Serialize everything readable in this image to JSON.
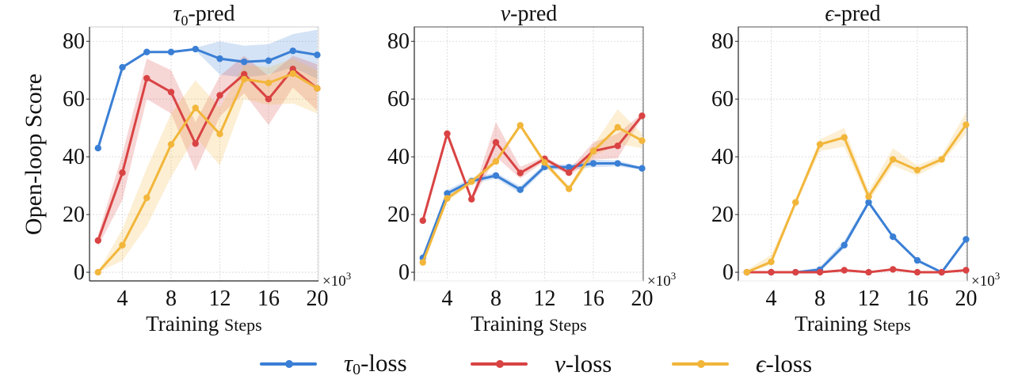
{
  "figure": {
    "ylabel": "Open-loop Score",
    "xlabel_main": "Training",
    "xlabel_small": "Steps",
    "x_multiplier": "×10",
    "x_multiplier_exp": "3"
  },
  "legend": [
    {
      "symbol": "τ",
      "sub": "0",
      "suffix": "-loss",
      "color": "#3a7fd5",
      "series": "tau0-loss"
    },
    {
      "symbol": "v",
      "sub": "",
      "suffix": "-loss",
      "color": "#d94343",
      "series": "v-loss"
    },
    {
      "symbol": "ϵ",
      "sub": "",
      "suffix": "-loss",
      "color": "#f2b63a",
      "series": "eps-loss"
    }
  ],
  "chart_data": [
    {
      "type": "line",
      "title": "τ0-pred",
      "title_symbol": "τ",
      "title_sub": "0",
      "title_suffix": "-pred",
      "xlabel": "Training Steps (×10^3)",
      "ylabel": "Open-loop Score",
      "x": [
        2,
        4,
        6,
        8,
        10,
        12,
        14,
        16,
        18,
        20
      ],
      "xticks": [
        4,
        8,
        12,
        16,
        20
      ],
      "yticks": [
        0,
        20,
        40,
        60,
        80
      ],
      "xlim": [
        1.3,
        20.1
      ],
      "ylim": [
        -3,
        85
      ],
      "grid": true,
      "legend_position": "bottom-center",
      "series": [
        {
          "name": "τ0-loss",
          "color": "#3a7fd5",
          "values": [
            43,
            71,
            76.3,
            76.3,
            77.3,
            74,
            72.9,
            73.3,
            76.7,
            75.3
          ],
          "lower": [
            43,
            71,
            76.3,
            76.3,
            76.8,
            68.5,
            67.5,
            68.5,
            71,
            67
          ],
          "upper": [
            43,
            71,
            76.3,
            76.3,
            77.8,
            80,
            78.5,
            79,
            82.5,
            84
          ]
        },
        {
          "name": "v-loss",
          "color": "#d94343",
          "values": [
            11,
            34.5,
            67.2,
            62.4,
            44.6,
            61.3,
            68.6,
            60,
            70.4,
            63.7
          ],
          "lower": [
            9,
            25,
            60,
            55,
            35,
            54,
            62,
            51,
            64,
            56
          ],
          "upper": [
            13,
            41,
            74,
            70,
            52,
            68,
            75,
            68,
            75,
            72
          ]
        },
        {
          "name": "ϵ-loss",
          "color": "#f2b63a",
          "values": [
            0,
            9.4,
            25.8,
            44.3,
            56.9,
            47.9,
            66.9,
            65.6,
            68.8,
            63.7
          ],
          "lower": [
            0,
            4,
            16,
            33,
            47,
            37,
            60,
            58,
            58.5,
            55
          ],
          "upper": [
            0,
            15,
            36,
            55,
            66.5,
            57,
            72,
            71,
            74,
            70
          ]
        }
      ]
    },
    {
      "type": "line",
      "title": "v-pred",
      "title_symbol": "v",
      "title_sub": "",
      "title_suffix": "-pred",
      "xlabel": "Training Steps (×10^3)",
      "ylabel": "",
      "x": [
        2,
        4,
        6,
        8,
        10,
        12,
        14,
        16,
        18,
        20
      ],
      "xticks": [
        4,
        8,
        12,
        16,
        20
      ],
      "yticks": [
        0,
        20,
        40,
        60,
        80
      ],
      "xlim": [
        1.3,
        20.1
      ],
      "ylim": [
        -3,
        85
      ],
      "grid": true,
      "series": [
        {
          "name": "τ0-loss",
          "color": "#3a7fd5",
          "values": [
            5,
            27.3,
            31.6,
            33.5,
            28.6,
            36.5,
            36.4,
            37.7,
            37.7,
            36
          ],
          "lower": [
            4.5,
            26,
            30.5,
            32.5,
            27.3,
            35.5,
            35.5,
            36.4,
            36.7,
            35.5
          ],
          "upper": [
            5.5,
            28.5,
            32.7,
            34.5,
            29.8,
            37.5,
            37.3,
            39,
            38.7,
            36.5
          ]
        },
        {
          "name": "v-loss",
          "color": "#d94343",
          "values": [
            17.9,
            48,
            25.3,
            45,
            34.4,
            39.3,
            34.5,
            42,
            43.8,
            54.2
          ],
          "lower": [
            17.5,
            46.5,
            24.5,
            40,
            32.5,
            38.5,
            33.5,
            39,
            39.5,
            53.5
          ],
          "upper": [
            18.3,
            49.5,
            26,
            52,
            36.5,
            40,
            35.5,
            45,
            48,
            55
          ]
        },
        {
          "name": "ϵ-loss",
          "color": "#f2b63a",
          "values": [
            3.4,
            25.6,
            31.4,
            38.4,
            50.9,
            38,
            28.9,
            42,
            50.2,
            45.6
          ],
          "lower": [
            3,
            24.5,
            30.5,
            37.5,
            50,
            37,
            28,
            40,
            44.5,
            43
          ],
          "upper": [
            3.8,
            26.5,
            32.3,
            39.3,
            51.8,
            39,
            29.8,
            44,
            56.5,
            48
          ]
        }
      ]
    },
    {
      "type": "line",
      "title": "ϵ-pred",
      "title_symbol": "ϵ",
      "title_sub": "",
      "title_suffix": "-pred",
      "xlabel": "Training Steps (×10^3)",
      "ylabel": "",
      "x": [
        2,
        4,
        6,
        8,
        10,
        12,
        14,
        16,
        18,
        20
      ],
      "xticks": [
        4,
        8,
        12,
        16,
        20
      ],
      "yticks": [
        0,
        20,
        40,
        60,
        80
      ],
      "xlim": [
        1.3,
        20.1
      ],
      "ylim": [
        -3,
        85
      ],
      "grid": true,
      "series": [
        {
          "name": "τ0-loss",
          "color": "#3a7fd5",
          "values": [
            0,
            0,
            0,
            0.9,
            9.4,
            24.2,
            12.3,
            4.1,
            0,
            11.4
          ],
          "lower": [
            0,
            0,
            0,
            0.3,
            8.2,
            23.5,
            11.8,
            3.7,
            0,
            11
          ],
          "upper": [
            0,
            0,
            0,
            1.8,
            11,
            25,
            13,
            4.6,
            0,
            11.8
          ]
        },
        {
          "name": "v-loss",
          "color": "#d94343",
          "values": [
            0,
            0,
            0,
            0,
            0.7,
            0,
            1,
            0,
            0,
            0.7
          ],
          "lower": [
            0,
            0,
            0,
            0,
            0.4,
            0,
            0.6,
            0,
            0,
            0.4
          ],
          "upper": [
            0,
            0,
            0,
            0,
            1,
            0,
            1.4,
            0,
            0,
            1
          ]
        },
        {
          "name": "ϵ-loss",
          "color": "#f2b63a",
          "values": [
            0,
            3.6,
            24.2,
            44.3,
            46.7,
            26.2,
            39.1,
            35.4,
            39.1,
            51.1
          ],
          "lower": [
            0,
            2.5,
            23.5,
            42,
            43.5,
            24.5,
            37,
            33.5,
            38,
            48
          ],
          "upper": [
            0.8,
            6,
            25,
            46,
            50,
            28,
            43,
            37,
            40.5,
            55.5
          ]
        }
      ]
    }
  ]
}
